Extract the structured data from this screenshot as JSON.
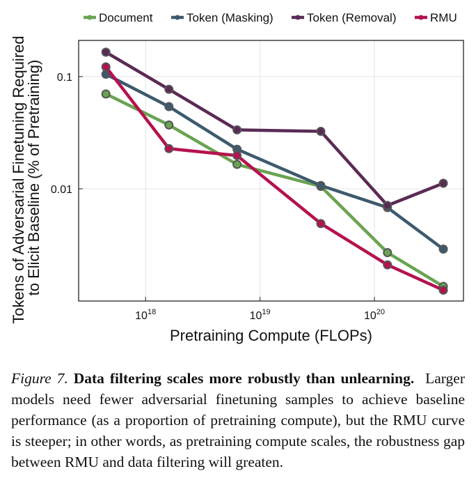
{
  "chart_data": {
    "type": "line",
    "title": "",
    "xlabel": "Pretraining Compute (FLOPs)",
    "ylabel_lines": [
      "Tokens of Adversarial Finetuning Required",
      "to Elicit Baseline (% of Pretraining)"
    ],
    "x_scale": "log",
    "y_scale": "log",
    "xlim": [
      2.6e+17,
      6e+20
    ],
    "ylim": [
      0.001,
      0.21
    ],
    "grid": true,
    "legend_position": "top",
    "x_ticks": [
      {
        "value": 1e+18,
        "base": "10",
        "exp": "18"
      },
      {
        "value": 1e+19,
        "base": "10",
        "exp": "19"
      },
      {
        "value": 1e+20,
        "base": "10",
        "exp": "20"
      }
    ],
    "y_ticks": [
      {
        "value": 0.1,
        "label": "0.1"
      },
      {
        "value": 0.01,
        "label": "0.01"
      }
    ],
    "x": [
      4.5e+17,
      1.6e+18,
      6.3e+18,
      3.4e+19,
      1.3e+20,
      4e+20
    ],
    "series": [
      {
        "name": "Document",
        "color": "#6aa352",
        "values": [
          0.07,
          0.037,
          0.0165,
          0.0105,
          0.0027,
          0.00135
        ]
      },
      {
        "name": "Token (Masking)",
        "color": "#3d5a6e",
        "values": [
          0.105,
          0.054,
          0.0225,
          0.0107,
          0.0068,
          0.0029
        ]
      },
      {
        "name": "Token (Removal)",
        "color": "#5a2a55",
        "values": [
          0.165,
          0.077,
          0.0335,
          0.0325,
          0.0071,
          0.0112
        ]
      },
      {
        "name": "RMU",
        "color": "#b5124f",
        "values": [
          0.122,
          0.0228,
          0.0198,
          0.0049,
          0.0021,
          0.00125
        ]
      }
    ]
  },
  "caption": {
    "label": "Figure 7.",
    "title": "Data filtering scales more robustly than unlearning.",
    "body": "Larger models need fewer adversarial finetuning samples to achieve baseline performance (as a proportion of pretraining compute), but the RMU curve is steeper; in other words, as pretraining compute scales, the robustness gap between RMU and data filtering will greaten."
  }
}
